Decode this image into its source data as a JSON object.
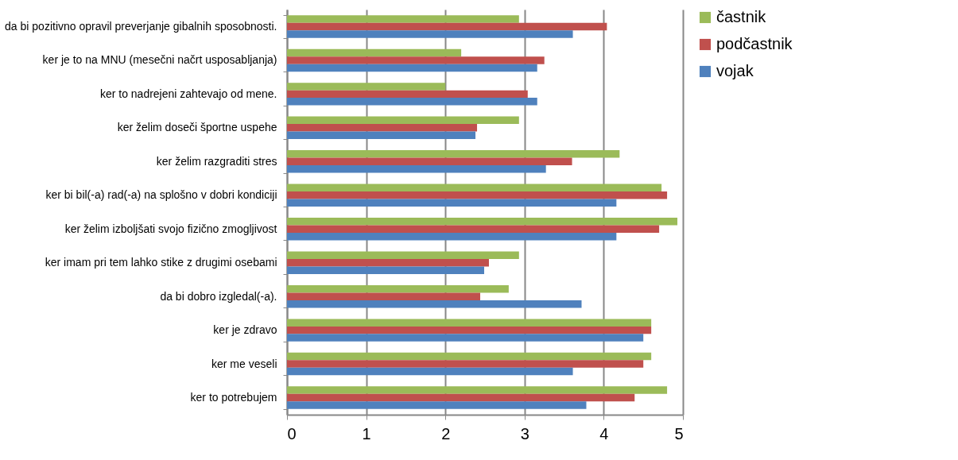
{
  "chart_data": {
    "type": "bar",
    "orientation": "horizontal",
    "categories": [
      "da bi pozitivno opravil preverjanje gibalnih sposobnosti.",
      "ker je to na MNU (mesečni načrt usposabljanja)",
      "ker to nadrejeni zahtevajo  od mene.",
      "ker želim doseči športne uspehe",
      "ker želim razgraditi stres",
      "ker bi bil(-a) rad(-a) na splošno v dobri kondiciji",
      "ker želim izboljšati svojo fizično zmogljivost",
      "ker imam pri tem lahko stike z drugimi osebami",
      "da bi dobro izgledal(-a).",
      "ker je zdravo",
      "ker me veseli",
      "ker to potrebujem"
    ],
    "series": [
      {
        "name": "častnik",
        "color": "#9bbb59",
        "values": [
          2.93,
          2.2,
          2.0,
          2.93,
          4.2,
          4.73,
          4.93,
          2.93,
          2.8,
          4.6,
          4.6,
          4.8
        ]
      },
      {
        "name": "podčastnik",
        "color": "#c0504d",
        "values": [
          4.04,
          3.25,
          3.04,
          2.4,
          3.6,
          4.8,
          4.7,
          2.55,
          2.44,
          4.6,
          4.5,
          4.39
        ]
      },
      {
        "name": "vojak",
        "color": "#4f81bd",
        "values": [
          3.61,
          3.16,
          3.16,
          2.38,
          3.27,
          4.16,
          4.16,
          2.49,
          3.72,
          4.5,
          3.61,
          3.78
        ]
      }
    ],
    "xlim": [
      0,
      5
    ],
    "xticks": [
      0,
      1,
      2,
      3,
      4,
      5
    ],
    "grid": "x",
    "legend": "right"
  }
}
